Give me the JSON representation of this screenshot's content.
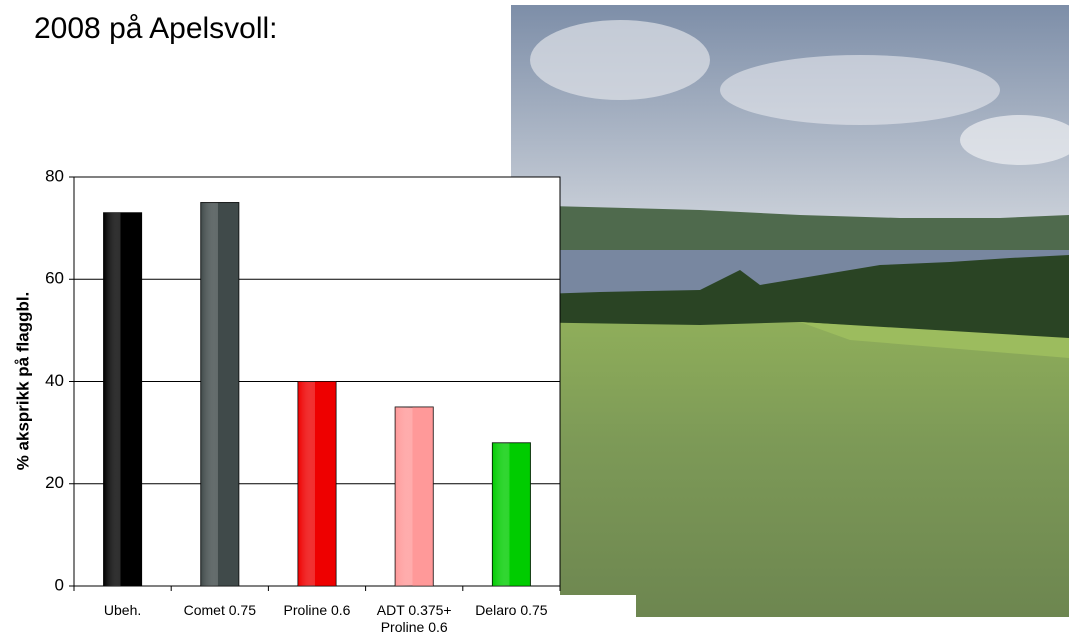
{
  "chart_data": {
    "type": "bar",
    "title": "2008 på Apelsvoll:",
    "y_label": "% aksprikk på flaggbl.",
    "categories": [
      "Ubeh.",
      "Comet 0.75",
      "Proline 0.6",
      "ADT 0.375+ Proline 0.6",
      "Delaro 0.75"
    ],
    "values": [
      73,
      75,
      40,
      35,
      28
    ],
    "colors": [
      "#000000",
      "#404a4a",
      "#ee0000",
      "#ff9999",
      "#00cc00"
    ],
    "ylim": [
      0,
      80
    ],
    "yticks": [
      0,
      20,
      40,
      60,
      80
    ],
    "grid": true
  }
}
